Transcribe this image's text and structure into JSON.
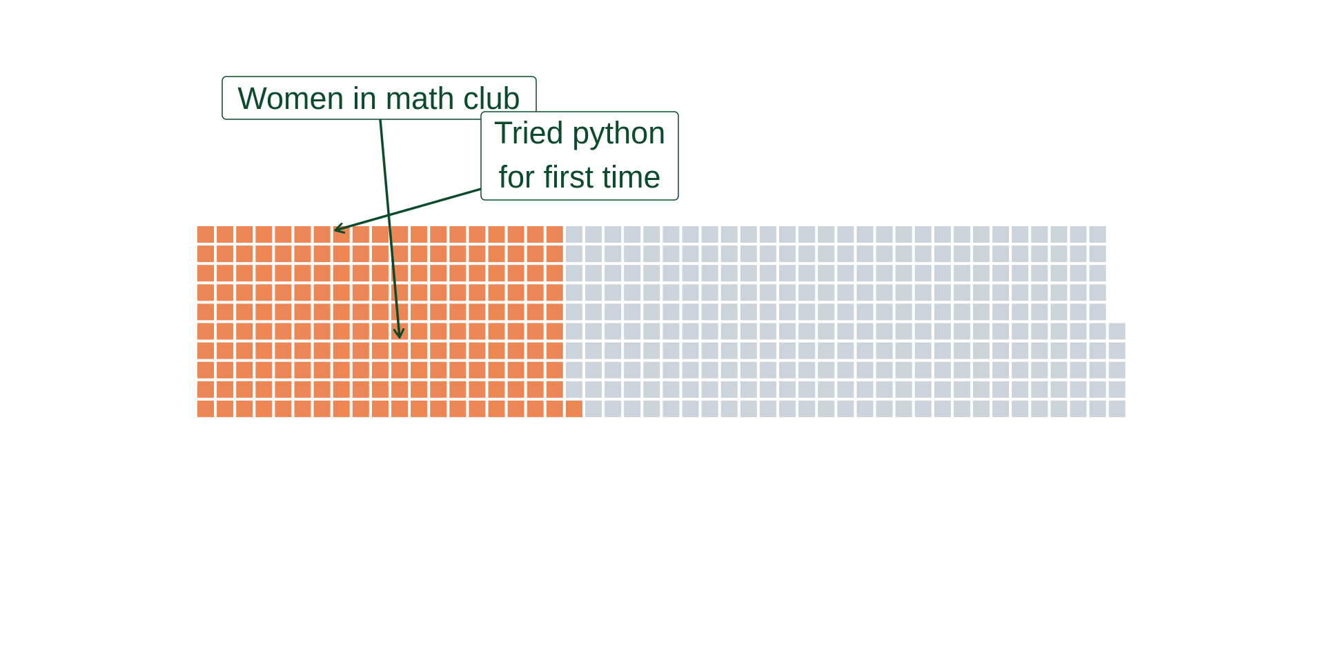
{
  "chart_data": {
    "type": "waffle",
    "title": "",
    "total_cells": 475,
    "columns": 49,
    "rows": 10,
    "fill_order": "column-major, bottom-to-top",
    "series": [
      {
        "name": "",
        "value": 191,
        "color": "#EC8654"
      },
      {
        "name": "",
        "value": 284,
        "color": "#CDD3DB"
      }
    ],
    "annotations": [
      {
        "text_lines": [
          "Women in math club"
        ],
        "arrow_target_cell": {
          "column": 10,
          "row_from_top": 5
        },
        "color": "#0B4A2A"
      },
      {
        "text_lines": [
          "Tried python",
          "for first time"
        ],
        "arrow_target_cell": {
          "column": 7,
          "row_from_top": 0
        },
        "color": "#0B4A2A"
      }
    ],
    "grid": false,
    "legend": "none"
  }
}
